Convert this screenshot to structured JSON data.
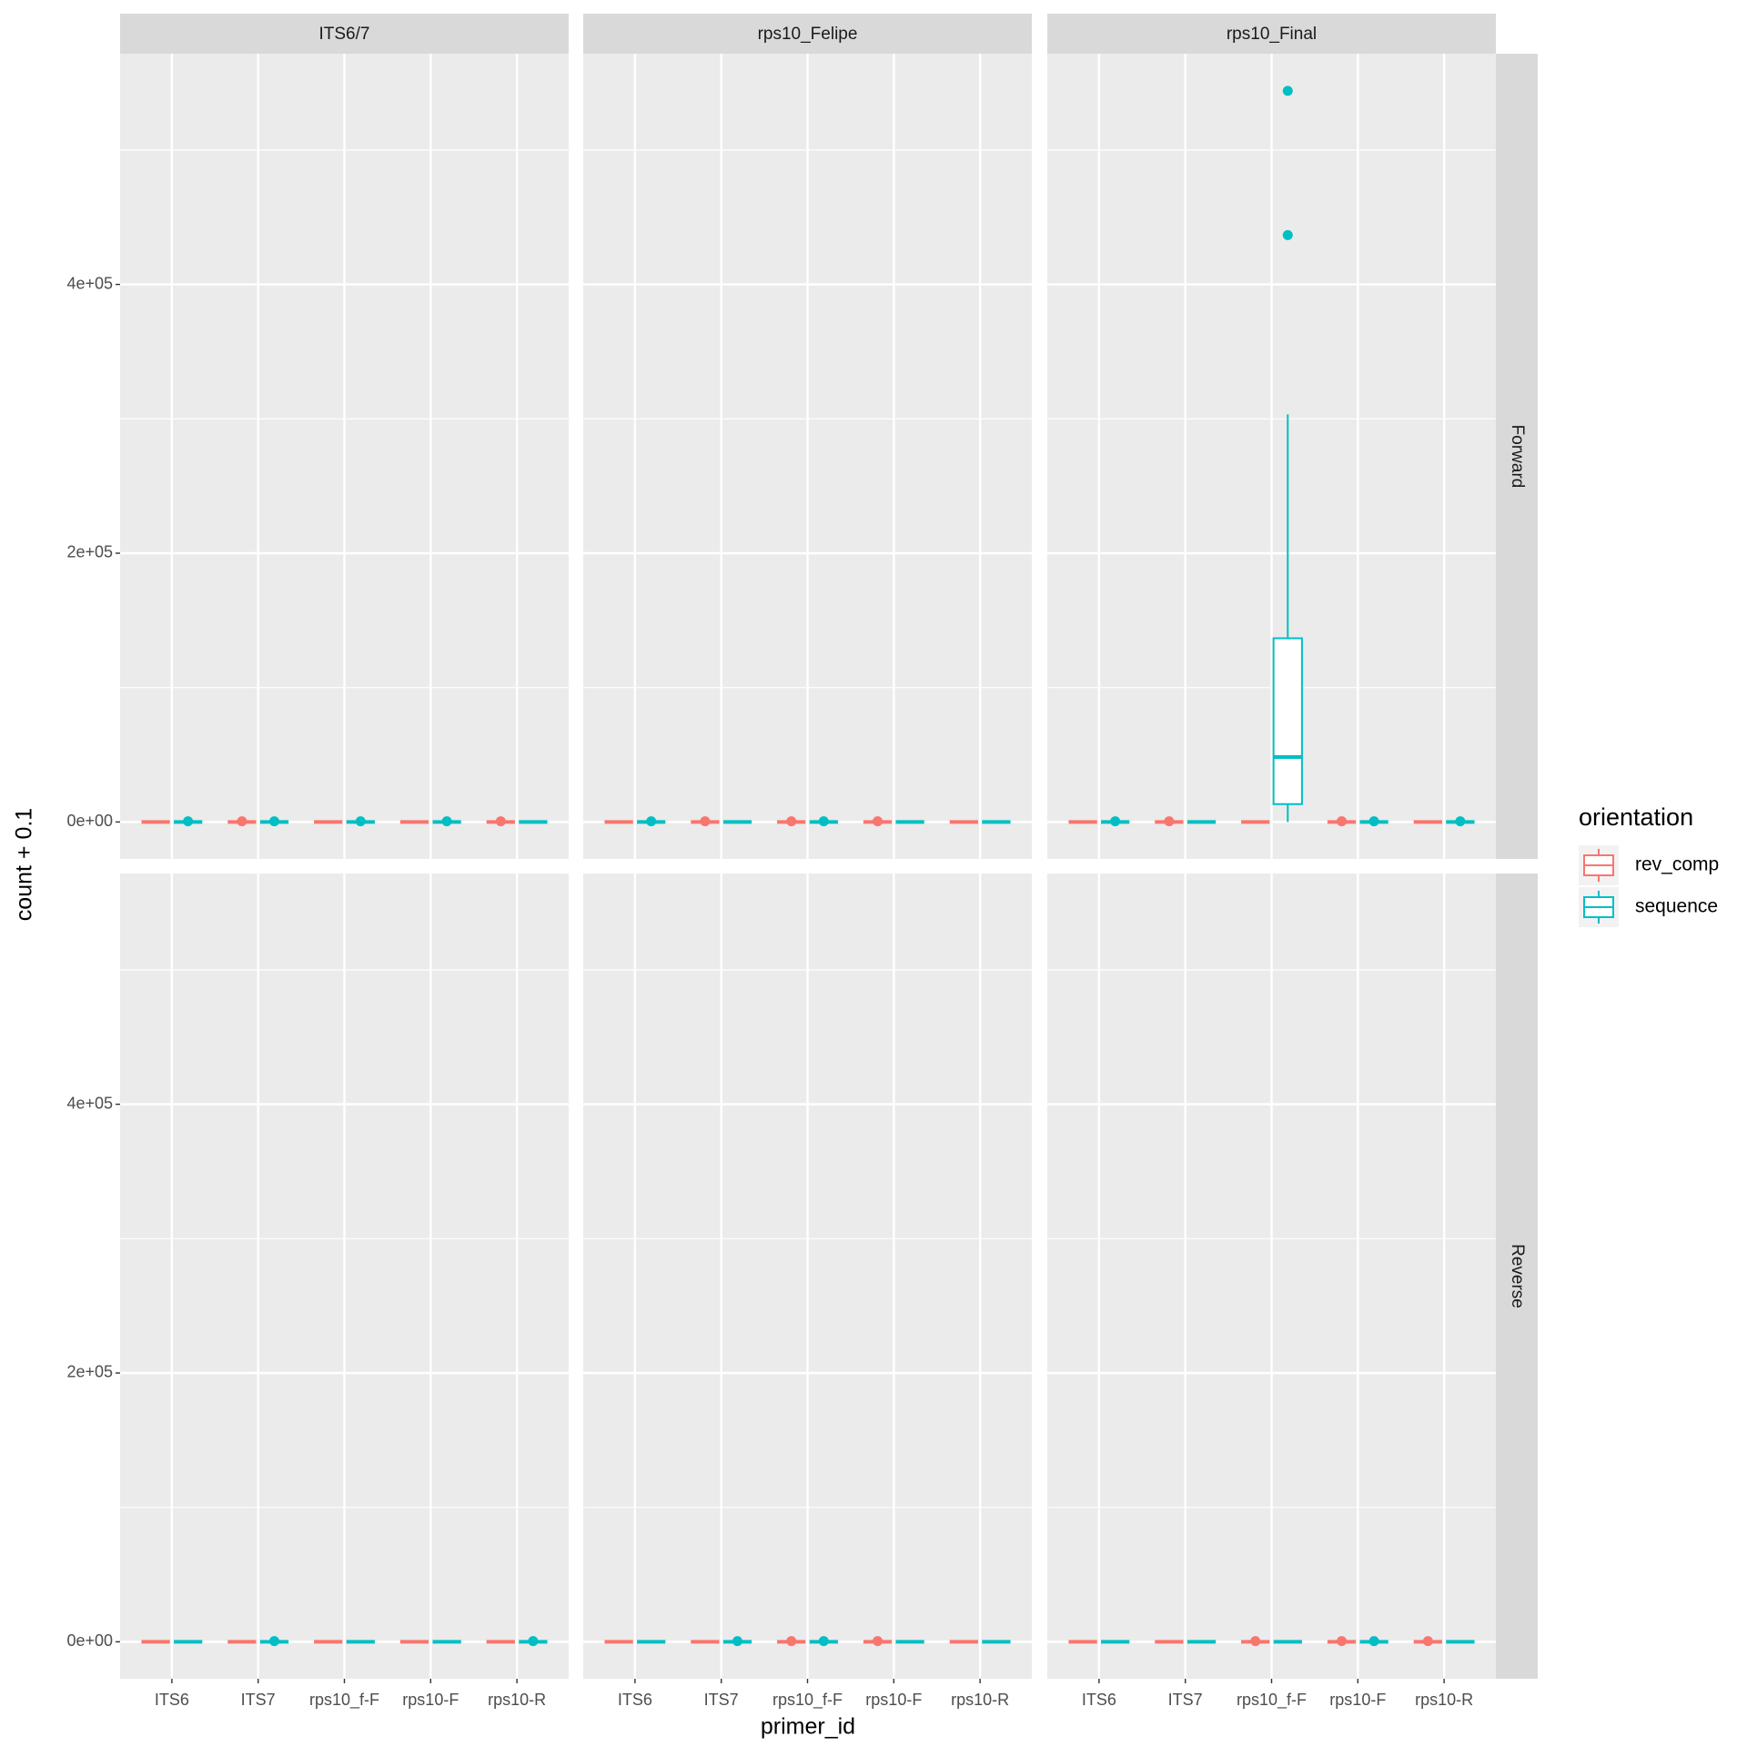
{
  "chart_data": {
    "type": "box",
    "x_label": "primer_id",
    "y_label": "count + 0.1",
    "facet_cols": [
      "ITS6/7",
      "rps10_Felipe",
      "rps10_Final"
    ],
    "facet_rows": [
      "Forward",
      "Reverse"
    ],
    "categories": [
      "ITS6",
      "ITS7",
      "rps10_f-F",
      "rps10-F",
      "rps10-R"
    ],
    "ylim": [
      -27500,
      571700
    ],
    "yticks": [
      {
        "value": 0,
        "label": "0e+00"
      },
      {
        "value": 200000,
        "label": "2e+05"
      },
      {
        "value": 400000,
        "label": "4e+05"
      }
    ],
    "minor_yticks": [
      100000,
      300000,
      500000
    ],
    "grid": true,
    "legend": {
      "title": "orientation",
      "position": "right"
    },
    "series": [
      {
        "name": "rev_comp",
        "color": "#f8766d"
      },
      {
        "name": "sequence",
        "color": "#00bfc4"
      }
    ],
    "panels": [
      {
        "series": [
          {
            "values": [
              [
                0.1,
                0.1,
                0.1,
                0.1,
                0.1
              ],
              [
                0.1,
                0.1,
                0.1,
                0.1,
                0.1
              ],
              [
                0.1,
                0.1,
                0.1,
                0.1,
                0.1
              ],
              [
                0.1,
                0.1,
                0.1,
                0.1,
                0.1
              ],
              [
                0.1,
                0.1,
                0.1,
                0.1,
                0.1
              ]
            ],
            "outliers": [
              [],
              [
                500
              ],
              [],
              [],
              [
                500
              ]
            ]
          },
          {
            "values": [
              [
                0.1,
                0.1,
                0.1,
                0.1,
                0.1
              ],
              [
                0.1,
                0.1,
                0.1,
                0.1,
                0.1
              ],
              [
                0.1,
                0.1,
                0.1,
                0.1,
                0.1
              ],
              [
                0.1,
                0.1,
                0.1,
                0.1,
                0.1
              ],
              [
                0.1,
                0.1,
                0.1,
                0.1,
                0.1
              ]
            ],
            "outliers": [
              [
                500
              ],
              [
                500
              ],
              [
                500
              ],
              [
                500
              ],
              []
            ]
          }
        ]
      },
      {
        "series": [
          {
            "values": [
              [
                0.1,
                0.1,
                0.1,
                0.1,
                0.1
              ],
              [
                0.1,
                0.1,
                0.1,
                0.1,
                0.1
              ],
              [
                0.1,
                0.1,
                0.1,
                0.1,
                0.1
              ],
              [
                0.1,
                0.1,
                0.1,
                0.1,
                0.1
              ],
              [
                0.1,
                0.1,
                0.1,
                0.1,
                0.1
              ]
            ],
            "outliers": [
              [],
              [
                500
              ],
              [
                500
              ],
              [
                500
              ],
              []
            ]
          },
          {
            "values": [
              [
                0.1,
                0.1,
                0.1,
                0.1,
                0.1
              ],
              [
                0.1,
                0.1,
                0.1,
                0.1,
                0.1
              ],
              [
                0.1,
                0.1,
                0.1,
                0.1,
                0.1
              ],
              [
                0.1,
                0.1,
                0.1,
                0.1,
                0.1
              ],
              [
                0.1,
                0.1,
                0.1,
                0.1,
                0.1
              ]
            ],
            "outliers": [
              [
                500
              ],
              [],
              [
                500
              ],
              [],
              []
            ]
          }
        ]
      },
      {
        "series": [
          {
            "values": [
              [
                0.1,
                0.1,
                0.1,
                0.1,
                0.1
              ],
              [
                0.1,
                0.1,
                0.1,
                0.1,
                0.1
              ],
              [
                0.1,
                0.1,
                0.1,
                0.1,
                0.1
              ],
              [
                0.1,
                0.1,
                0.1,
                0.1,
                0.1
              ],
              [
                0.1,
                0.1,
                0.1,
                0.1,
                0.1
              ]
            ],
            "outliers": [
              [],
              [
                500
              ],
              [],
              [
                500
              ],
              []
            ]
          },
          {
            "values": [
              [
                0.1,
                0.1,
                0.1,
                0.1,
                0.1
              ],
              [
                0.1,
                0.1,
                0.1,
                0.1,
                0.1
              ],
              [
                0.1,
                13300,
                48300,
                136700,
                303300
              ],
              [
                0.1,
                0.1,
                0.1,
                0.1,
                0.1
              ],
              [
                0.1,
                0.1,
                0.1,
                0.1,
                0.1
              ]
            ],
            "outliers": [
              [
                500
              ],
              [],
              [
                436700,
                544000
              ],
              [
                500
              ],
              [
                500
              ]
            ]
          }
        ]
      },
      {
        "series": [
          {
            "values": [
              [
                0.1,
                0.1,
                0.1,
                0.1,
                0.1
              ],
              [
                0.1,
                0.1,
                0.1,
                0.1,
                0.1
              ],
              [
                0.1,
                0.1,
                0.1,
                0.1,
                0.1
              ],
              [
                0.1,
                0.1,
                0.1,
                0.1,
                0.1
              ],
              [
                0.1,
                0.1,
                0.1,
                0.1,
                0.1
              ]
            ],
            "outliers": [
              [],
              [],
              [],
              [],
              []
            ]
          },
          {
            "values": [
              [
                0.1,
                0.1,
                0.1,
                0.1,
                0.1
              ],
              [
                0.1,
                0.1,
                0.1,
                0.1,
                0.1
              ],
              [
                0.1,
                0.1,
                0.1,
                0.1,
                0.1
              ],
              [
                0.1,
                0.1,
                0.1,
                0.1,
                0.1
              ],
              [
                0.1,
                0.1,
                0.1,
                0.1,
                0.1
              ]
            ],
            "outliers": [
              [],
              [
                500
              ],
              [],
              [],
              [
                500
              ]
            ]
          }
        ]
      },
      {
        "series": [
          {
            "values": [
              [
                0.1,
                0.1,
                0.1,
                0.1,
                0.1
              ],
              [
                0.1,
                0.1,
                0.1,
                0.1,
                0.1
              ],
              [
                0.1,
                0.1,
                0.1,
                0.1,
                0.1
              ],
              [
                0.1,
                0.1,
                0.1,
                0.1,
                0.1
              ],
              [
                0.1,
                0.1,
                0.1,
                0.1,
                0.1
              ]
            ],
            "outliers": [
              [],
              [],
              [
                500
              ],
              [
                500
              ],
              []
            ]
          },
          {
            "values": [
              [
                0.1,
                0.1,
                0.1,
                0.1,
                0.1
              ],
              [
                0.1,
                0.1,
                0.1,
                0.1,
                0.1
              ],
              [
                0.1,
                0.1,
                0.1,
                0.1,
                0.1
              ],
              [
                0.1,
                0.1,
                0.1,
                0.1,
                0.1
              ],
              [
                0.1,
                0.1,
                0.1,
                0.1,
                0.1
              ]
            ],
            "outliers": [
              [],
              [
                500
              ],
              [
                500
              ],
              [],
              []
            ]
          }
        ]
      },
      {
        "series": [
          {
            "values": [
              [
                0.1,
                0.1,
                0.1,
                0.1,
                0.1
              ],
              [
                0.1,
                0.1,
                0.1,
                0.1,
                0.1
              ],
              [
                0.1,
                0.1,
                0.1,
                0.1,
                0.1
              ],
              [
                0.1,
                0.1,
                0.1,
                0.1,
                0.1
              ],
              [
                0.1,
                0.1,
                0.1,
                0.1,
                0.1
              ]
            ],
            "outliers": [
              [],
              [],
              [
                500
              ],
              [
                500
              ],
              [
                500
              ]
            ]
          },
          {
            "values": [
              [
                0.1,
                0.1,
                0.1,
                0.1,
                0.1
              ],
              [
                0.1,
                0.1,
                0.1,
                0.1,
                0.1
              ],
              [
                0.1,
                0.1,
                0.1,
                0.1,
                0.1
              ],
              [
                0.1,
                0.1,
                0.1,
                0.1,
                0.1
              ],
              [
                0.1,
                0.1,
                0.1,
                0.1,
                0.1
              ]
            ],
            "outliers": [
              [],
              [],
              [],
              [
                500
              ],
              []
            ]
          }
        ]
      }
    ]
  }
}
